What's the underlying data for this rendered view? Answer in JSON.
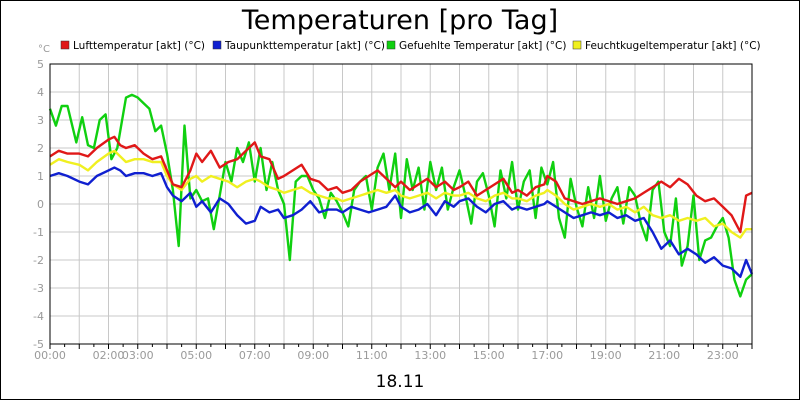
{
  "chart_data": {
    "type": "line",
    "title": "Temperaturen [pro Tag]",
    "xlabel": "18.11",
    "ylabel": "°C",
    "ylim": [
      -5,
      5
    ],
    "xlim": [
      0,
      24
    ],
    "grid": true,
    "legend_position": "top",
    "y_ticks": [
      "5",
      "4",
      "3",
      "2",
      "1",
      "0",
      "-1",
      "-2",
      "-3",
      "-4",
      "-5"
    ],
    "x_ticks": [
      {
        "h": 0,
        "label": "00:00"
      },
      {
        "h": 2,
        "label": "02:00"
      },
      {
        "h": 3,
        "label": "03:00"
      },
      {
        "h": 5,
        "label": "05:00"
      },
      {
        "h": 7,
        "label": "07:00"
      },
      {
        "h": 9,
        "label": "09:00"
      },
      {
        "h": 11,
        "label": "11:00"
      },
      {
        "h": 13,
        "label": "13:00"
      },
      {
        "h": 15,
        "label": "15:00"
      },
      {
        "h": 17,
        "label": "17:00"
      },
      {
        "h": 19,
        "label": "19:00"
      },
      {
        "h": 21,
        "label": "21:00"
      },
      {
        "h": 23,
        "label": "23:00"
      }
    ],
    "series": [
      {
        "name": "Lufttemperatur [akt] (°C)",
        "color": "#e01818",
        "x": [
          0,
          0.3,
          0.6,
          1,
          1.3,
          1.6,
          2,
          2.2,
          2.4,
          2.6,
          2.9,
          3.2,
          3.5,
          3.8,
          4,
          4.2,
          4.5,
          4.8,
          5,
          5.2,
          5.5,
          5.8,
          6.1,
          6.4,
          6.7,
          7,
          7.2,
          7.5,
          7.8,
          8,
          8.3,
          8.6,
          8.9,
          9.2,
          9.5,
          9.8,
          10,
          10.3,
          10.6,
          10.9,
          11.2,
          11.5,
          11.8,
          12,
          12.3,
          12.6,
          12.9,
          13.2,
          13.5,
          13.8,
          14,
          14.3,
          14.6,
          14.9,
          15.2,
          15.5,
          15.8,
          16,
          16.3,
          16.6,
          16.9,
          17,
          17.3,
          17.6,
          17.9,
          18.2,
          18.5,
          18.8,
          19.1,
          19.4,
          19.7,
          20,
          20.3,
          20.6,
          20.9,
          21.2,
          21.5,
          21.8,
          22.1,
          22.4,
          22.7,
          23,
          23.3,
          23.6,
          23.8,
          24
        ],
        "y": [
          1.7,
          1.9,
          1.8,
          1.8,
          1.7,
          2,
          2.3,
          2.4,
          2.1,
          2,
          2.1,
          1.8,
          1.6,
          1.7,
          1.2,
          0.7,
          0.6,
          1.2,
          1.8,
          1.5,
          1.9,
          1.3,
          1.5,
          1.6,
          1.9,
          2.2,
          1.7,
          1.6,
          0.9,
          1,
          1.2,
          1.4,
          0.9,
          0.8,
          0.5,
          0.6,
          0.4,
          0.5,
          0.8,
          1,
          1.2,
          0.9,
          0.6,
          0.8,
          0.5,
          0.7,
          0.9,
          0.6,
          0.8,
          0.5,
          0.6,
          0.8,
          0.3,
          0.5,
          0.7,
          0.9,
          0.4,
          0.5,
          0.3,
          0.6,
          0.7,
          1,
          0.8,
          0.2,
          0.1,
          0,
          0.1,
          0.2,
          0.1,
          0,
          0.1,
          0.2,
          0.4,
          0.6,
          0.8,
          0.6,
          0.9,
          0.7,
          0.3,
          0.1,
          0.2,
          -0.1,
          -0.4,
          -1,
          0.3,
          0.4
        ]
      },
      {
        "name": "Taupunkttemperatur [akt] (°C)",
        "color": "#1020d0",
        "x": [
          0,
          0.3,
          0.6,
          1,
          1.3,
          1.6,
          2,
          2.2,
          2.4,
          2.6,
          2.9,
          3.2,
          3.5,
          3.8,
          4,
          4.2,
          4.5,
          4.8,
          5,
          5.2,
          5.5,
          5.8,
          6.1,
          6.4,
          6.7,
          7,
          7.2,
          7.5,
          7.8,
          8,
          8.3,
          8.6,
          8.9,
          9.2,
          9.5,
          9.8,
          10,
          10.3,
          10.6,
          10.9,
          11.2,
          11.5,
          11.8,
          12,
          12.3,
          12.6,
          12.9,
          13.2,
          13.5,
          13.8,
          14,
          14.3,
          14.6,
          14.9,
          15.2,
          15.5,
          15.8,
          16,
          16.3,
          16.6,
          16.9,
          17,
          17.3,
          17.6,
          17.9,
          18.2,
          18.5,
          18.8,
          19.1,
          19.4,
          19.7,
          20,
          20.3,
          20.6,
          20.9,
          21.2,
          21.5,
          21.8,
          22.1,
          22.4,
          22.7,
          23,
          23.3,
          23.6,
          23.8,
          24
        ],
        "y": [
          1,
          1.1,
          1,
          0.8,
          0.7,
          1,
          1.2,
          1.3,
          1.2,
          1,
          1.1,
          1.1,
          1,
          1.1,
          0.6,
          0.3,
          0.1,
          0.4,
          -0.1,
          0.1,
          -0.3,
          0.2,
          0,
          -0.4,
          -0.7,
          -0.6,
          -0.1,
          -0.3,
          -0.2,
          -0.5,
          -0.4,
          -0.2,
          0.1,
          -0.3,
          -0.2,
          -0.2,
          -0.3,
          -0.1,
          -0.2,
          -0.3,
          -0.2,
          -0.1,
          0.3,
          -0.1,
          -0.3,
          -0.2,
          0,
          -0.4,
          0.1,
          -0.1,
          0.1,
          0.2,
          -0.1,
          -0.3,
          0,
          0.1,
          -0.2,
          -0.1,
          -0.2,
          -0.1,
          0,
          0.1,
          -0.1,
          -0.3,
          -0.5,
          -0.4,
          -0.3,
          -0.4,
          -0.3,
          -0.5,
          -0.4,
          -0.6,
          -0.5,
          -1,
          -1.6,
          -1.3,
          -1.8,
          -1.6,
          -1.8,
          -2.1,
          -1.9,
          -2.2,
          -2.3,
          -2.6,
          -2.0,
          -2.5
        ]
      },
      {
        "name": "Gefuehlte Temperatur [akt] (°C)",
        "color": "#10d010",
        "x": [
          0,
          0.2,
          0.4,
          0.6,
          0.9,
          1.1,
          1.3,
          1.5,
          1.7,
          1.9,
          2.1,
          2.3,
          2.6,
          2.8,
          3,
          3.2,
          3.4,
          3.6,
          3.8,
          4,
          4.2,
          4.4,
          4.6,
          4.8,
          5,
          5.2,
          5.4,
          5.6,
          5.8,
          6,
          6.2,
          6.4,
          6.6,
          6.8,
          7,
          7.2,
          7.4,
          7.6,
          7.8,
          8,
          8.2,
          8.4,
          8.6,
          8.8,
          9,
          9.2,
          9.4,
          9.6,
          9.8,
          10,
          10.2,
          10.4,
          10.6,
          10.8,
          11,
          11.2,
          11.4,
          11.6,
          11.8,
          12,
          12.2,
          12.4,
          12.6,
          12.8,
          13,
          13.2,
          13.4,
          13.6,
          13.8,
          14,
          14.2,
          14.4,
          14.6,
          14.8,
          15,
          15.2,
          15.4,
          15.6,
          15.8,
          16,
          16.2,
          16.4,
          16.6,
          16.8,
          17,
          17.2,
          17.4,
          17.6,
          17.8,
          18,
          18.2,
          18.4,
          18.6,
          18.8,
          19,
          19.2,
          19.4,
          19.6,
          19.8,
          20,
          20.2,
          20.4,
          20.6,
          20.8,
          21,
          21.2,
          21.4,
          21.6,
          21.8,
          22,
          22.2,
          22.4,
          22.6,
          22.8,
          23,
          23.2,
          23.4,
          23.6,
          23.8,
          24
        ],
        "y": [
          3.4,
          2.8,
          3.5,
          3.5,
          2.2,
          3.1,
          2.1,
          2,
          3,
          3.2,
          1.6,
          2,
          3.8,
          3.9,
          3.8,
          3.6,
          3.4,
          2.6,
          2.8,
          1.8,
          0.5,
          -1.5,
          2.8,
          0.2,
          0.5,
          0.1,
          0.2,
          -0.9,
          0.3,
          1.5,
          0.8,
          2.0,
          1.5,
          2.2,
          0.8,
          2.0,
          0.5,
          1.5,
          0.5,
          0.0,
          -2.0,
          0.8,
          1.0,
          1.0,
          0.5,
          0.2,
          -0.5,
          0.4,
          0.1,
          -0.3,
          -0.8,
          0.5,
          0.8,
          1.0,
          -0.2,
          1.3,
          1.8,
          0.5,
          1.8,
          -0.5,
          1.6,
          0.5,
          1.3,
          -0.2,
          1.5,
          0.5,
          1.3,
          -0.2,
          0.6,
          1.2,
          0.3,
          -0.7,
          0.8,
          1.1,
          0.3,
          -0.8,
          1.2,
          0.2,
          1.5,
          -0.2,
          0.8,
          1.2,
          -0.5,
          1.3,
          0.7,
          1.5,
          -0.5,
          -1.2,
          0.9,
          -0.1,
          -0.8,
          0.6,
          -0.5,
          1.0,
          -0.6,
          0.2,
          0.6,
          -0.7,
          0.6,
          0.3,
          -0.7,
          -1.3,
          0.5,
          0.8,
          -1.0,
          -1.5,
          0.2,
          -2.2,
          -1.5,
          0.3,
          -2.0,
          -1.3,
          -1.2,
          -0.8,
          -0.5,
          -1.2,
          -2.7,
          -3.3,
          -2.7,
          -2.5
        ]
      },
      {
        "name": "Feuchtkugeltemperatur [akt] (°C)",
        "color": "#f0f020",
        "x": [
          0,
          0.3,
          0.6,
          1,
          1.3,
          1.6,
          2,
          2.2,
          2.4,
          2.6,
          2.9,
          3.2,
          3.5,
          3.8,
          4,
          4.2,
          4.5,
          4.8,
          5,
          5.2,
          5.5,
          5.8,
          6.1,
          6.4,
          6.7,
          7,
          7.2,
          7.5,
          7.8,
          8,
          8.3,
          8.6,
          8.9,
          9.2,
          9.5,
          9.8,
          10,
          10.3,
          10.6,
          10.9,
          11.2,
          11.5,
          11.8,
          12,
          12.3,
          12.6,
          12.9,
          13.2,
          13.5,
          13.8,
          14,
          14.3,
          14.6,
          14.9,
          15.2,
          15.5,
          15.8,
          16,
          16.3,
          16.6,
          16.9,
          17,
          17.3,
          17.6,
          17.9,
          18.2,
          18.5,
          18.8,
          19.1,
          19.4,
          19.7,
          20,
          20.3,
          20.6,
          20.9,
          21.2,
          21.5,
          21.8,
          22.1,
          22.4,
          22.7,
          23,
          23.3,
          23.6,
          23.8,
          24
        ],
        "y": [
          1.4,
          1.6,
          1.5,
          1.4,
          1.2,
          1.5,
          1.8,
          1.9,
          1.7,
          1.5,
          1.6,
          1.6,
          1.5,
          1.5,
          1.0,
          0.7,
          0.5,
          0.9,
          1.0,
          0.8,
          1.0,
          0.9,
          0.8,
          0.6,
          0.8,
          0.9,
          0.8,
          0.6,
          0.5,
          0.4,
          0.5,
          0.6,
          0.4,
          0.3,
          0.2,
          0.2,
          0.1,
          0.2,
          0.3,
          0.4,
          0.5,
          0.4,
          0.5,
          0.3,
          0.2,
          0.3,
          0.4,
          0.2,
          0.4,
          0.3,
          0.3,
          0.4,
          0.2,
          0.1,
          0.3,
          0.4,
          0.2,
          0.2,
          0.1,
          0.3,
          0.4,
          0.5,
          0.3,
          0.0,
          -0.2,
          -0.1,
          0.0,
          -0.1,
          0.0,
          -0.2,
          -0.1,
          -0.3,
          -0.1,
          -0.4,
          -0.5,
          -0.4,
          -0.6,
          -0.5,
          -0.6,
          -0.5,
          -0.8,
          -0.7,
          -1.0,
          -1.2,
          -0.9,
          -0.9
        ]
      }
    ]
  }
}
